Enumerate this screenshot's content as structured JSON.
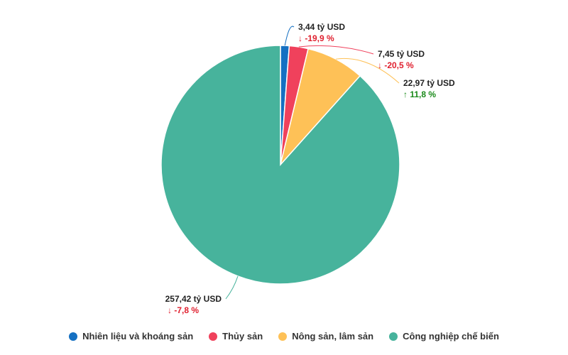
{
  "chart_data": {
    "type": "pie",
    "title": "",
    "legend_position": "bottom",
    "slices": [
      {
        "name": "Nhiên liệu và khoáng sản",
        "value": 3.44,
        "value_label": "3,44 tỷ USD",
        "change": -19.9,
        "change_label": "↓ -19,9 %",
        "color": "#1570c2"
      },
      {
        "name": "Thủy sản",
        "value": 7.45,
        "value_label": "7,45 tỷ USD",
        "change": -20.5,
        "change_label": "↓ -20,5 %",
        "color": "#f0415c"
      },
      {
        "name": "Nông sản, lâm sản",
        "value": 22.97,
        "value_label": "22,97 tỷ USD",
        "change": 11.8,
        "change_label": "↑ 11,8 %",
        "color": "#fec157"
      },
      {
        "name": "Công nghiệp chế biến",
        "value": 257.42,
        "value_label": "257,42 tỷ USD",
        "change": -7.8,
        "change_label": "↓ -7,8 %",
        "color": "#47b39c"
      }
    ],
    "colors": {
      "negative": "#e0202f",
      "positive": "#1a8a1a"
    }
  }
}
